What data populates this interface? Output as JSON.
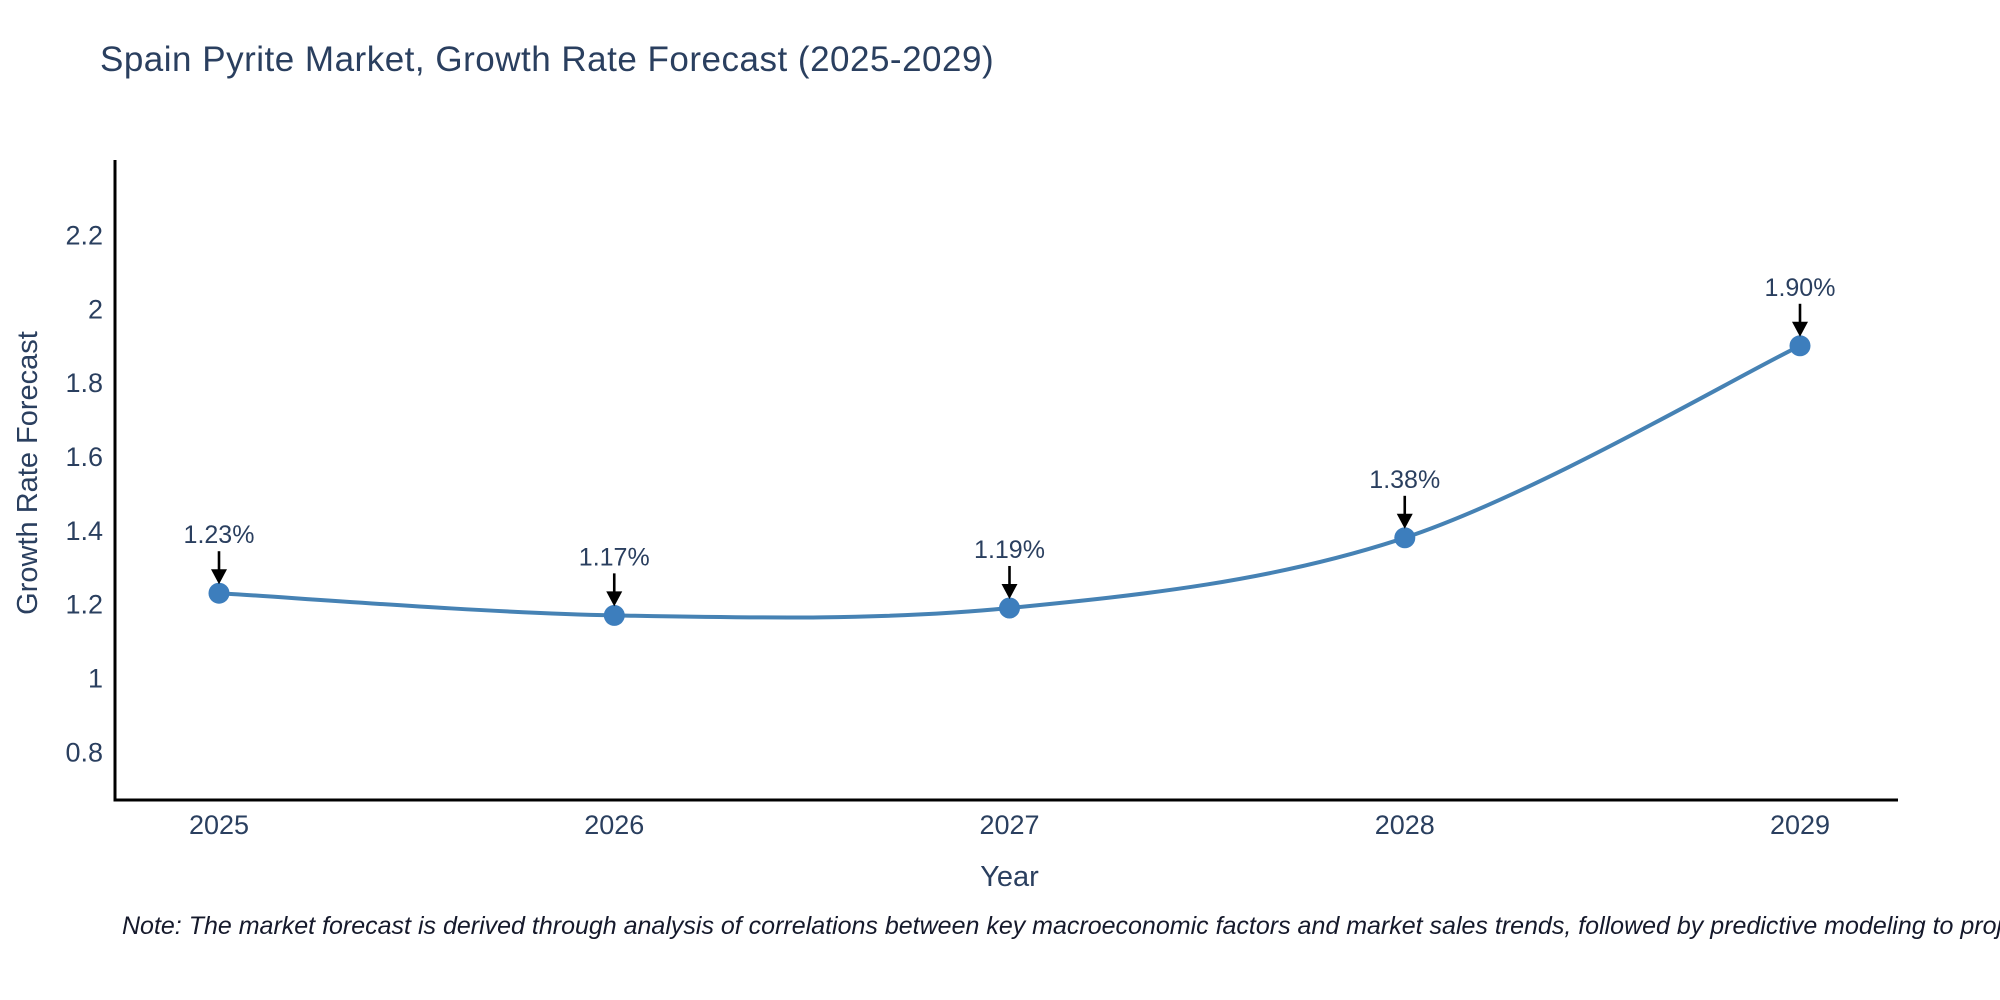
{
  "title": "Spain Pyrite Market, Growth Rate Forecast (2025-2029)",
  "note": "Note: The market forecast is derived through analysis of correlations between key macroeconomic factors and market sales trends, followed by predictive modeling to project future sales",
  "chart_data": {
    "type": "line",
    "title": "Spain Pyrite Market, Growth Rate Forecast (2025-2029)",
    "xlabel": "Year",
    "ylabel": "Growth Rate Forecast",
    "categories": [
      "2025",
      "2026",
      "2027",
      "2028",
      "2029"
    ],
    "values": [
      1.23,
      1.17,
      1.19,
      1.38,
      1.9
    ],
    "point_labels": [
      "1.23%",
      "1.17%",
      "1.19%",
      "1.38%",
      "1.90%"
    ],
    "yticks": [
      "2.2",
      "2",
      "1.8",
      "1.6",
      "1.4",
      "1.2",
      "1",
      "0.8"
    ],
    "ytick_values": [
      2.2,
      2.0,
      1.8,
      1.6,
      1.4,
      1.2,
      1.0,
      0.8
    ],
    "ylim": [
      0.67,
      2.4
    ],
    "line_shape": "spline",
    "grid": false,
    "legend_position": "none",
    "colors": {
      "line": "#4682b4",
      "marker": "#3d7ebd",
      "axis_line": "#000000",
      "text": "#2a3f5f",
      "annotation_arrow": "#000000",
      "note_text": "#15192b",
      "background": "#ffffff"
    }
  }
}
